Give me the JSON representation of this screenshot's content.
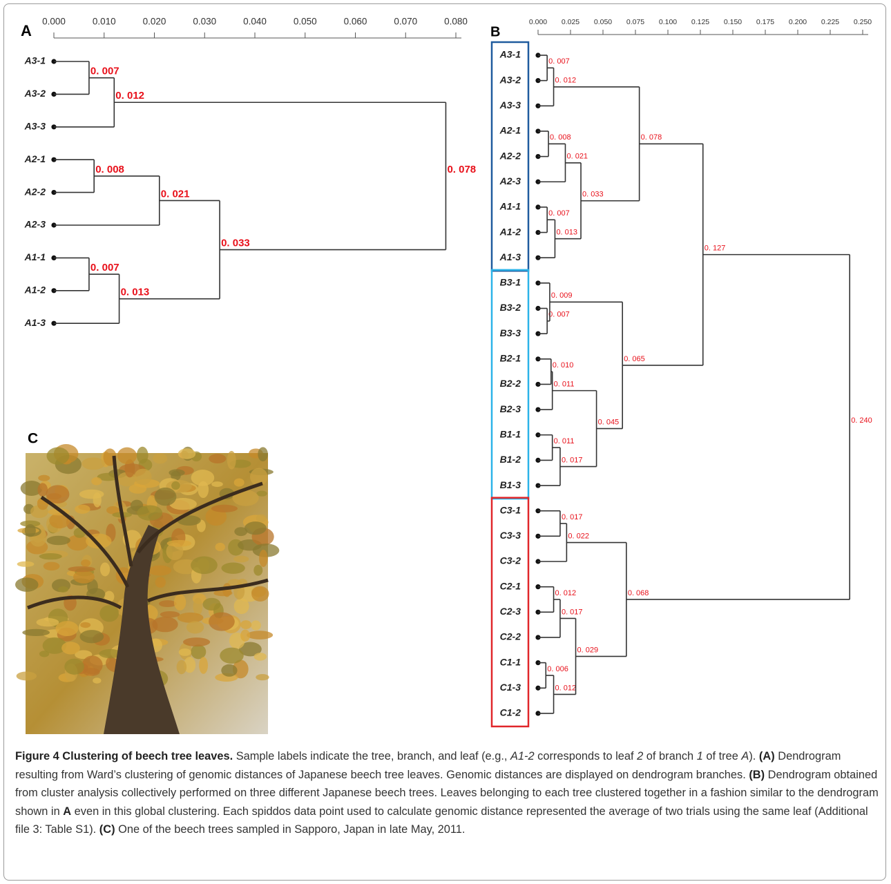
{
  "chart_data": [
    {
      "type": "dendrogram",
      "panel_label": "A",
      "xlim": [
        0,
        0.08
      ],
      "xticks": [
        {
          "value": 0,
          "label": "0.000"
        },
        {
          "value": 0.01,
          "label": "0.010"
        },
        {
          "value": 0.02,
          "label": "0.020"
        },
        {
          "value": 0.03,
          "label": "0.030"
        },
        {
          "value": 0.04,
          "label": "0.040"
        },
        {
          "value": 0.05,
          "label": "0.050"
        },
        {
          "value": 0.06,
          "label": "0.060"
        },
        {
          "value": 0.07,
          "label": "0.070"
        },
        {
          "value": 0.08,
          "label": "0.080"
        }
      ],
      "node_label_color": "#e8101a",
      "tree": {
        "value": 0.078,
        "value_label": "0. 078",
        "children": [
          {
            "value": 0.012,
            "value_label": "0. 012",
            "children": [
              {
                "value": 0.007,
                "value_label": "0. 007",
                "children": [
                  "A3-1",
                  "A3-2"
                ]
              },
              "A3-3"
            ]
          },
          {
            "value": 0.033,
            "value_label": "0. 033",
            "children": [
              {
                "value": 0.021,
                "value_label": "0. 021",
                "children": [
                  {
                    "value": 0.008,
                    "value_label": "0. 008",
                    "children": [
                      "A2-1",
                      "A2-2"
                    ]
                  },
                  "A2-3"
                ]
              },
              {
                "value": 0.013,
                "value_label": "0. 013",
                "children": [
                  {
                    "value": 0.007,
                    "value_label": "0. 007",
                    "children": [
                      "A1-1",
                      "A1-2"
                    ]
                  },
                  "A1-3"
                ]
              }
            ]
          }
        ]
      }
    },
    {
      "type": "dendrogram",
      "panel_label": "B",
      "xlim": [
        0,
        0.25
      ],
      "xticks": [
        {
          "value": 0,
          "label": "0.000"
        },
        {
          "value": 0.025,
          "label": "0.025"
        },
        {
          "value": 0.05,
          "label": "0.050"
        },
        {
          "value": 0.075,
          "label": "0.075"
        },
        {
          "value": 0.1,
          "label": "0.100"
        },
        {
          "value": 0.125,
          "label": "0.125"
        },
        {
          "value": 0.15,
          "label": "0.150"
        },
        {
          "value": 0.175,
          "label": "0.175"
        },
        {
          "value": 0.2,
          "label": "0.200"
        },
        {
          "value": 0.225,
          "label": "0.225"
        },
        {
          "value": 0.25,
          "label": "0.250"
        }
      ],
      "node_label_color": "#e8101a",
      "box_colors": [
        "#1f5b9e",
        "#2bb3e8",
        "#e0262a"
      ],
      "tree": {
        "value": 0.24,
        "value_label": "0. 240",
        "children": [
          {
            "value": 0.127,
            "value_label": "0. 127",
            "children": [
              {
                "value": 0.078,
                "value_label": "0. 078",
                "children": [
                  {
                    "value": 0.012,
                    "value_label": "0. 012",
                    "children": [
                      {
                        "value": 0.007,
                        "value_label": "0. 007",
                        "children": [
                          "A3-1",
                          "A3-2"
                        ]
                      },
                      "A3-3"
                    ]
                  },
                  {
                    "value": 0.033,
                    "value_label": "0. 033",
                    "children": [
                      {
                        "value": 0.021,
                        "value_label": "0. 021",
                        "children": [
                          {
                            "value": 0.008,
                            "value_label": "0. 008",
                            "children": [
                              "A2-1",
                              "A2-2"
                            ]
                          },
                          "A2-3"
                        ]
                      },
                      {
                        "value": 0.013,
                        "value_label": "0. 013",
                        "children": [
                          {
                            "value": 0.007,
                            "value_label": "0. 007",
                            "children": [
                              "A1-1",
                              "A1-2"
                            ]
                          },
                          "A1-3"
                        ]
                      }
                    ]
                  }
                ]
              },
              {
                "value": 0.065,
                "value_label": "0. 065",
                "children": [
                  {
                    "value": 0.009,
                    "value_label": "0. 009",
                    "children": [
                      "B3-1",
                      {
                        "value": 0.007,
                        "value_label": "0. 007",
                        "children": [
                          "B3-2",
                          "B3-3"
                        ]
                      }
                    ]
                  },
                  {
                    "value": 0.045,
                    "value_label": "0. 045",
                    "children": [
                      {
                        "value": 0.011,
                        "value_label": "0. 011",
                        "children": [
                          {
                            "value": 0.01,
                            "value_label": "0. 010",
                            "children": [
                              "B2-1",
                              "B2-2"
                            ]
                          },
                          "B2-3"
                        ]
                      },
                      {
                        "value": 0.017,
                        "value_label": "0. 017",
                        "children": [
                          {
                            "value": 0.011,
                            "value_label": "0. 011",
                            "children": [
                              "B1-1",
                              "B1-2"
                            ]
                          },
                          "B1-3"
                        ]
                      }
                    ]
                  }
                ]
              }
            ]
          },
          {
            "value": 0.068,
            "value_label": "0. 068",
            "children": [
              {
                "value": 0.022,
                "value_label": "0. 022",
                "children": [
                  {
                    "value": 0.017,
                    "value_label": "0. 017",
                    "children": [
                      "C3-1",
                      "C3-3"
                    ]
                  },
                  "C3-2"
                ]
              },
              {
                "value": 0.029,
                "value_label": "0. 029",
                "children": [
                  {
                    "value": 0.017,
                    "value_label": "0. 017",
                    "children": [
                      {
                        "value": 0.012,
                        "value_label": "0. 012",
                        "children": [
                          "C2-1",
                          "C2-3"
                        ]
                      },
                      "C2-2"
                    ]
                  },
                  {
                    "value": 0.012,
                    "value_label": "0. 012",
                    "children": [
                      {
                        "value": 0.006,
                        "value_label": "0. 006",
                        "children": [
                          "C1-1",
                          "C1-3"
                        ]
                      },
                      "C1-2"
                    ]
                  }
                ]
              }
            ]
          }
        ]
      }
    }
  ],
  "panel_c": {
    "label": "C"
  },
  "caption": {
    "runs": [
      {
        "text": "Figure 4 Clustering of beech tree leaves.",
        "style": "bold"
      },
      {
        "text": " Sample labels indicate the tree, branch, and leaf (e.g., "
      },
      {
        "text": "A1-2",
        "style": "italic"
      },
      {
        "text": " corresponds to leaf "
      },
      {
        "text": "2",
        "style": "italic"
      },
      {
        "text": " of branch "
      },
      {
        "text": "1",
        "style": "italic"
      },
      {
        "text": " of tree "
      },
      {
        "text": "A",
        "style": "italic"
      },
      {
        "text": "). "
      },
      {
        "text": "(A)",
        "style": "bold"
      },
      {
        "text": " Dendrogram resulting from Ward’s clustering of genomic distances of Japanese beech tree leaves. Genomic distances are displayed on dendrogram branches. "
      },
      {
        "text": "(B)",
        "style": "bold"
      },
      {
        "text": " Dendrogram obtained from cluster analysis collectively performed on three different Japanese beech trees. Leaves belonging to each tree clustered together in a fashion similar to the dendrogram shown in "
      },
      {
        "text": "A",
        "style": "bold"
      },
      {
        "text": " even in this global clustering. Each spiddos data point used to calculate genomic distance represented the average of two trials using the same leaf (Additional file 3: Table S1). "
      },
      {
        "text": "(C)",
        "style": "bold"
      },
      {
        "text": " One of the beech trees sampled in Sapporo, Japan in late May, 2011."
      }
    ]
  }
}
